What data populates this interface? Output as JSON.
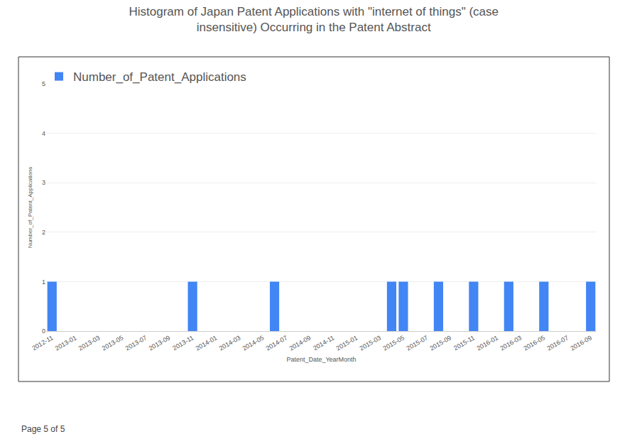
{
  "chart_data": {
    "type": "bar",
    "title": "Histogram of Japan Patent Applications with \"internet of things\" (case\ninsensitive) Occurring in the Patent Abstract",
    "x_label": "Patent_Date_YearMonth",
    "y_label": "Number_of_Patent_Applications",
    "footer": "Page 5 of 5",
    "categories": [
      "2012-11",
      null,
      "2013-01",
      null,
      "2013-03",
      null,
      "2013-05",
      null,
      "2013-07",
      null,
      "2013-09",
      null,
      "2013-11",
      null,
      "2014-01",
      null,
      "2014-03",
      null,
      "2014-05",
      null,
      "2014-07",
      null,
      "2014-09",
      null,
      "2014-11",
      null,
      "2015-01",
      null,
      "2015-03",
      null,
      "2015-05",
      null,
      "2015-07",
      null,
      "2015-09",
      null,
      "2015-11",
      null,
      "2016-01",
      null,
      "2016-03",
      null,
      "2016-05",
      null,
      "2016-07",
      null,
      "2016-09"
    ],
    "series": [
      {
        "name": "Number_of_Patent_Applications",
        "color": "#4285f4",
        "values": [
          1,
          0,
          0,
          0,
          0,
          0,
          0,
          0,
          0,
          0,
          0,
          0,
          1,
          0,
          0,
          0,
          0,
          0,
          0,
          1,
          0,
          0,
          0,
          0,
          0,
          0,
          0,
          0,
          0,
          1,
          1,
          0,
          0,
          1,
          0,
          0,
          1,
          0,
          0,
          1,
          0,
          0,
          1,
          0,
          0,
          0,
          1
        ]
      }
    ],
    "ylim": [
      0,
      5
    ],
    "yticks": [
      0,
      1,
      2,
      3,
      4,
      5
    ],
    "grid": true,
    "legend": "top left"
  }
}
